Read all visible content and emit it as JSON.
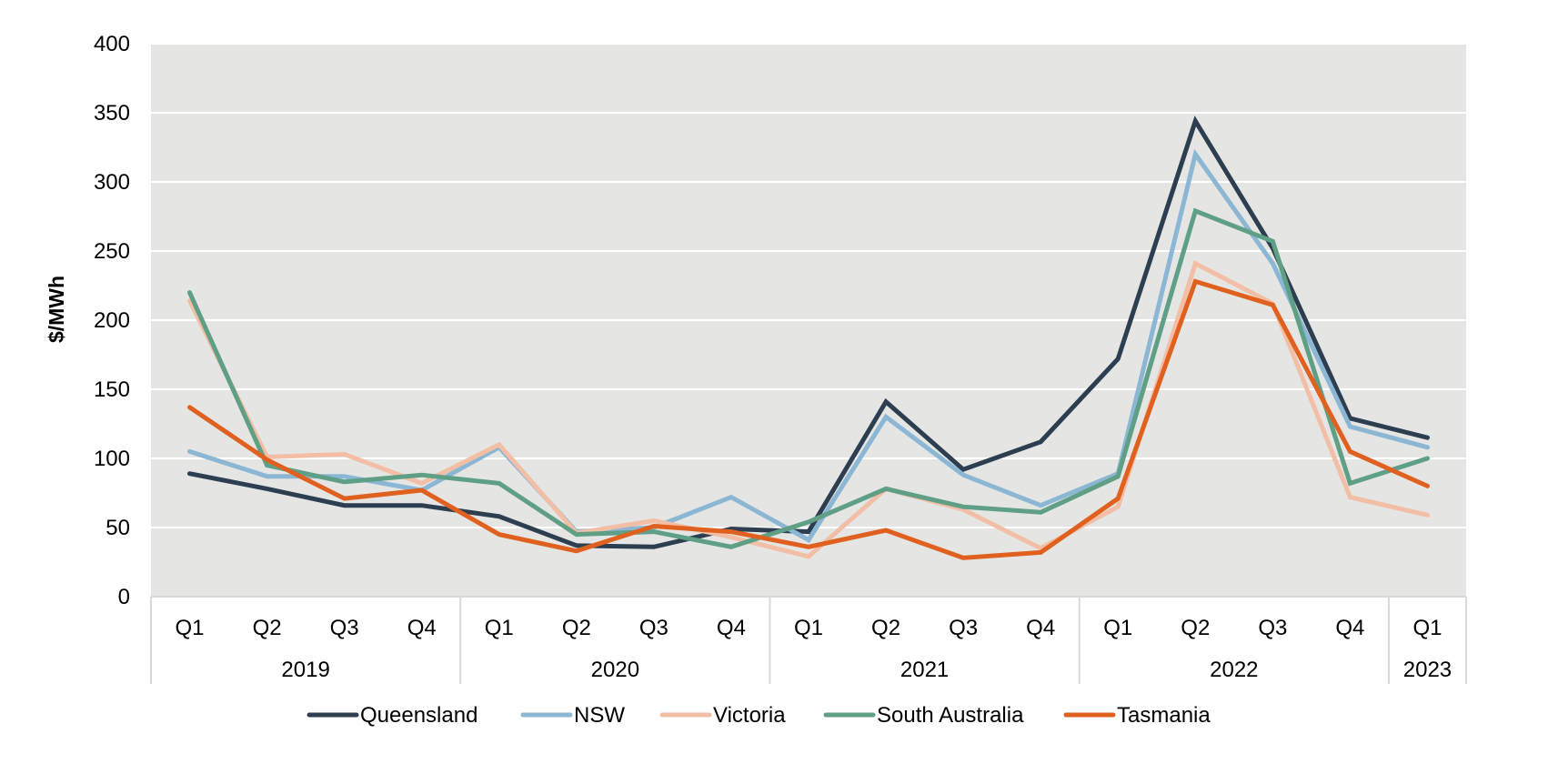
{
  "chart_data": {
    "type": "line",
    "title": "",
    "xlabel": "",
    "ylabel": "$/MWh",
    "ylim": [
      0,
      400
    ],
    "yticks": [
      0,
      50,
      100,
      150,
      200,
      250,
      300,
      350,
      400
    ],
    "grid": true,
    "legend_position": "bottom",
    "categories": [
      "Q1 2019",
      "Q2 2019",
      "Q3 2019",
      "Q4 2019",
      "Q1 2020",
      "Q2 2020",
      "Q3 2020",
      "Q4 2020",
      "Q1 2021",
      "Q2 2021",
      "Q3 2021",
      "Q4 2021",
      "Q1 2022",
      "Q2 2022",
      "Q3 2022",
      "Q4 2022",
      "Q1 2023"
    ],
    "quarter_labels": [
      "Q1",
      "Q2",
      "Q3",
      "Q4",
      "Q1",
      "Q2",
      "Q3",
      "Q4",
      "Q1",
      "Q2",
      "Q3",
      "Q4",
      "Q1",
      "Q2",
      "Q3",
      "Q4",
      "Q1"
    ],
    "year_groups": [
      {
        "label": "2019",
        "count": 4
      },
      {
        "label": "2020",
        "count": 4
      },
      {
        "label": "2021",
        "count": 4
      },
      {
        "label": "2022",
        "count": 4
      },
      {
        "label": "2023",
        "count": 1
      }
    ],
    "series": [
      {
        "name": "Queensland",
        "color": "#2c3e50",
        "values": [
          89,
          78,
          66,
          66,
          58,
          37,
          36,
          49,
          47,
          141,
          92,
          112,
          172,
          344,
          252,
          129,
          115
        ]
      },
      {
        "name": "NSW",
        "color": "#8bb6d4",
        "values": [
          105,
          87,
          87,
          77,
          108,
          47,
          50,
          72,
          41,
          130,
          88,
          66,
          89,
          320,
          241,
          123,
          108
        ]
      },
      {
        "name": "Victoria",
        "color": "#f2bea6",
        "values": [
          214,
          101,
          103,
          82,
          110,
          46,
          55,
          43,
          29,
          78,
          63,
          35,
          65,
          241,
          212,
          72,
          59
        ]
      },
      {
        "name": "South Australia",
        "color": "#5e9f85",
        "values": [
          220,
          95,
          83,
          88,
          82,
          45,
          47,
          36,
          54,
          78,
          65,
          61,
          87,
          279,
          257,
          82,
          100
        ]
      },
      {
        "name": "Tasmania",
        "color": "#e0611f",
        "values": [
          137,
          99,
          71,
          77,
          45,
          33,
          51,
          47,
          36,
          48,
          28,
          32,
          71,
          228,
          211,
          105,
          80
        ]
      }
    ]
  }
}
